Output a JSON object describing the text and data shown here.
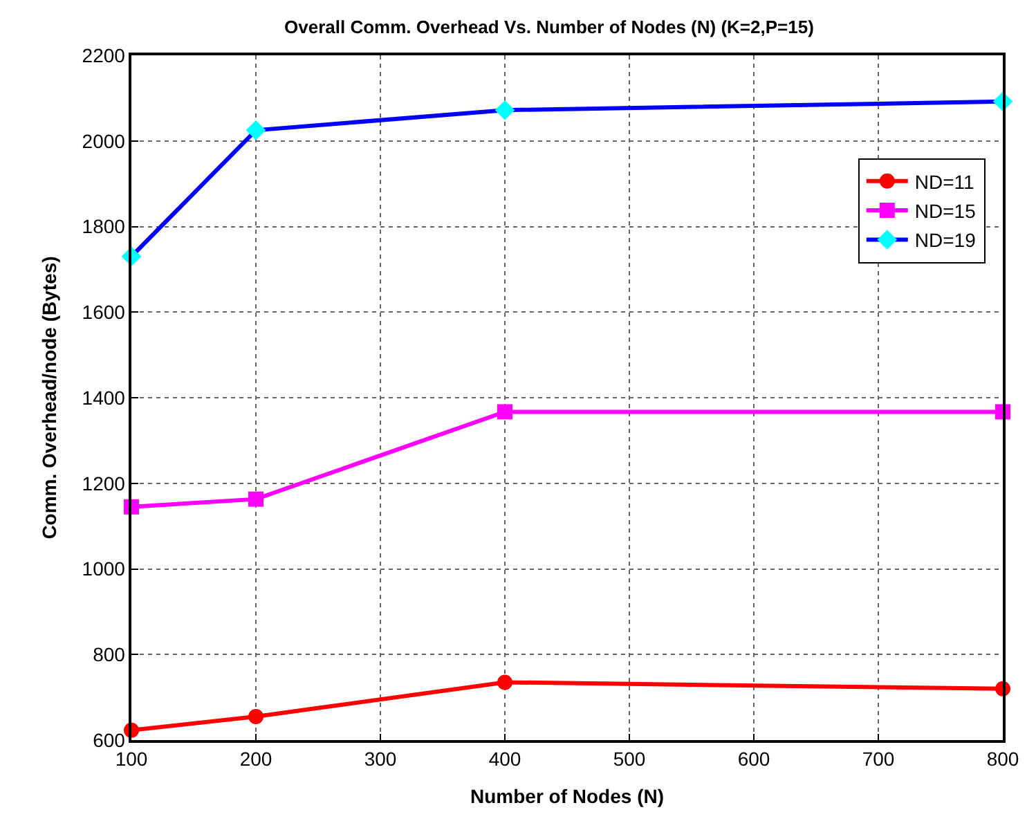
{
  "chart_data": {
    "type": "line",
    "title": "Overall Comm. Overhead Vs. Number of Nodes (N) (K=2,P=15)",
    "xlabel": "Number of Nodes (N)",
    "ylabel": "Comm. Overhead/node (Bytes)",
    "x": [
      100,
      200,
      400,
      800
    ],
    "series": [
      {
        "name": "ND=11",
        "color": "#ff0000",
        "marker": "circle",
        "values": [
          623,
          655,
          735,
          720
        ]
      },
      {
        "name": "ND=15",
        "color": "#ff00ff",
        "marker": "square",
        "values": [
          1145,
          1163,
          1367,
          1367
        ]
      },
      {
        "name": "ND=19",
        "color": "#0000ff",
        "marker": "diamond",
        "colors": [
          "#00ffff",
          "#00ffff",
          "#00ffff",
          "#00ffff"
        ],
        "values": [
          1730,
          2025,
          2072,
          2092
        ]
      }
    ],
    "xlim": [
      100,
      800
    ],
    "xticks": [
      100,
      200,
      300,
      400,
      500,
      600,
      700,
      800
    ],
    "ylim": [
      600,
      2200
    ],
    "yticks": [
      600,
      800,
      1000,
      1200,
      1400,
      1600,
      1800,
      2000,
      2200
    ],
    "grid": true,
    "legend": "top right",
    "line_style": "solid"
  }
}
